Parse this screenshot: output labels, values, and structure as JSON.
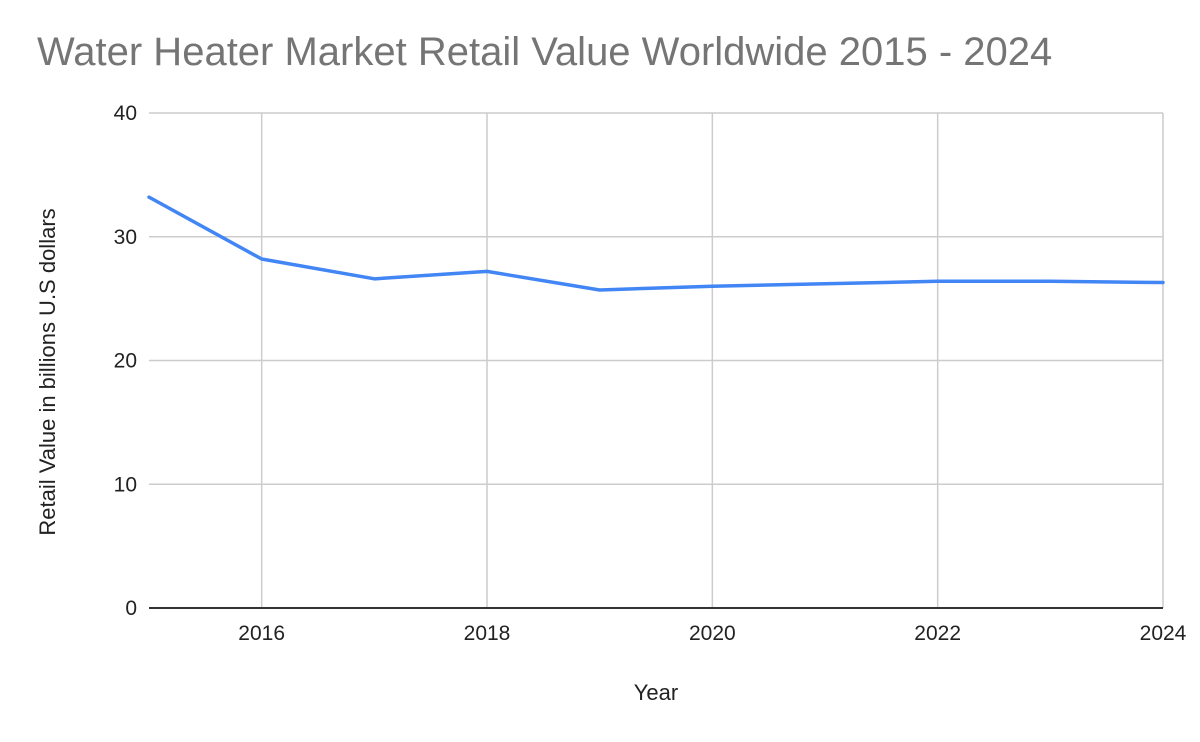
{
  "chart_data": {
    "type": "line",
    "title": "Water Heater Market Retail Value Worldwide 2015 - 2024",
    "xlabel": "Year",
    "ylabel": "Retail Value in billions U.S dollars",
    "x": [
      2015,
      2016,
      2017,
      2018,
      2019,
      2020,
      2021,
      2022,
      2023,
      2024
    ],
    "series": [
      {
        "values": [
          33.2,
          28.2,
          26.6,
          27.2,
          25.7,
          26.0,
          26.2,
          26.4,
          26.4,
          26.3
        ]
      }
    ],
    "xlim": [
      2015,
      2024
    ],
    "ylim": [
      0,
      40
    ],
    "xticks": [
      2016,
      2018,
      2020,
      2022,
      2024
    ],
    "yticks": [
      0,
      10,
      20,
      30,
      40
    ],
    "grid": true,
    "legend": "none",
    "colors": {
      "line": "#4285f4",
      "grid": "#cccccc",
      "axis": "#333333"
    }
  }
}
